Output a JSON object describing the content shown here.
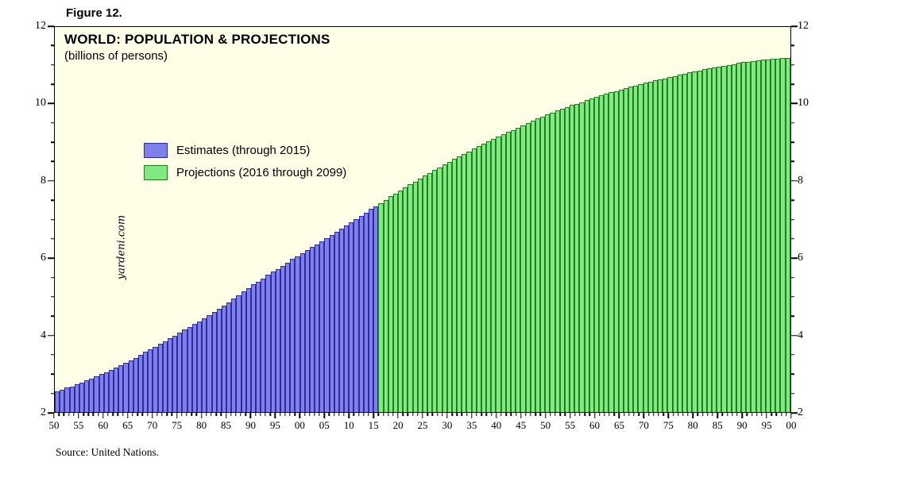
{
  "figure_label": "Figure 12.",
  "watermark": "yardeni.com",
  "source": "Source: United Nations.",
  "chart_data": {
    "type": "bar",
    "title": "WORLD: POPULATION & PROJECTIONS",
    "subtitle": "(billions of persons)",
    "ylabel": "",
    "xlabel": "",
    "ylim": [
      2,
      12
    ],
    "y_ticks": [
      2,
      4,
      6,
      8,
      10,
      12
    ],
    "x_start_year": 1950,
    "x_end_year": 2100,
    "x_tick_labels": [
      "50",
      "55",
      "60",
      "65",
      "70",
      "75",
      "80",
      "85",
      "90",
      "95",
      "00",
      "05",
      "10",
      "15",
      "20",
      "25",
      "30",
      "35",
      "40",
      "45",
      "50",
      "55",
      "60",
      "65",
      "70",
      "75",
      "80",
      "85",
      "90",
      "95",
      "00"
    ],
    "plot_background": "#ffffe8",
    "legend_position": "upper-left-inside",
    "grid": false,
    "series": [
      {
        "name": "Estimates (through 2015)",
        "fill": "#8080ec",
        "edge": "#2c2c9e",
        "start_year": 1950,
        "end_year": 2015,
        "values": [
          2.53,
          2.58,
          2.63,
          2.67,
          2.72,
          2.77,
          2.82,
          2.87,
          2.93,
          2.98,
          3.03,
          3.09,
          3.15,
          3.22,
          3.28,
          3.34,
          3.41,
          3.48,
          3.56,
          3.63,
          3.7,
          3.77,
          3.84,
          3.92,
          3.99,
          4.06,
          4.14,
          4.21,
          4.29,
          4.36,
          4.44,
          4.52,
          4.6,
          4.69,
          4.77,
          4.85,
          4.94,
          5.03,
          5.13,
          5.22,
          5.31,
          5.39,
          5.47,
          5.56,
          5.64,
          5.72,
          5.8,
          5.88,
          5.97,
          6.05,
          6.13,
          6.21,
          6.28,
          6.36,
          6.43,
          6.51,
          6.59,
          6.68,
          6.76,
          6.85,
          6.93,
          7.01,
          7.1,
          7.18,
          7.27,
          7.35
        ]
      },
      {
        "name": "Projections (2016 through 2099)",
        "fill": "#82e882",
        "edge": "#1d7f1d",
        "start_year": 2016,
        "end_year": 2099,
        "values": [
          7.43,
          7.51,
          7.6,
          7.68,
          7.76,
          7.84,
          7.91,
          7.99,
          8.06,
          8.14,
          8.21,
          8.28,
          8.36,
          8.43,
          8.5,
          8.57,
          8.64,
          8.7,
          8.77,
          8.84,
          8.9,
          8.97,
          9.03,
          9.1,
          9.16,
          9.22,
          9.28,
          9.33,
          9.39,
          9.45,
          9.51,
          9.56,
          9.62,
          9.67,
          9.73,
          9.78,
          9.83,
          9.87,
          9.92,
          9.97,
          10.01,
          10.05,
          10.1,
          10.14,
          10.18,
          10.22,
          10.26,
          10.3,
          10.34,
          10.38,
          10.41,
          10.45,
          10.48,
          10.52,
          10.55,
          10.58,
          10.61,
          10.64,
          10.67,
          10.7,
          10.73,
          10.76,
          10.79,
          10.82,
          10.85,
          10.87,
          10.9,
          10.92,
          10.95,
          10.97,
          10.99,
          11.02,
          11.04,
          11.07,
          11.09,
          11.1,
          11.12,
          11.13,
          11.15,
          11.16,
          11.17,
          11.18,
          11.19,
          11.2
        ]
      }
    ]
  }
}
